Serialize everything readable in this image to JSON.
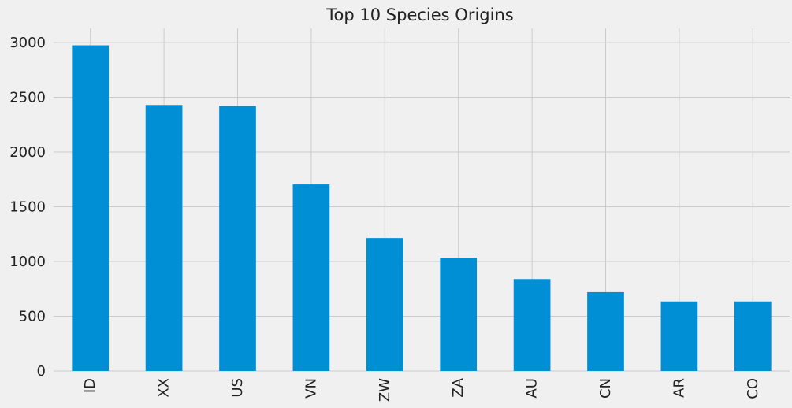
{
  "chart_data": {
    "type": "bar",
    "title": "Top 10 Species Origins",
    "xlabel": "",
    "ylabel": "",
    "categories": [
      "ID",
      "XX",
      "US",
      "VN",
      "ZW",
      "ZA",
      "AU",
      "CN",
      "AR",
      "CO"
    ],
    "values": [
      2975,
      2430,
      2420,
      1705,
      1215,
      1035,
      840,
      720,
      635,
      635
    ],
    "ylim": [
      0,
      3130
    ],
    "yticks": [
      0,
      500,
      1000,
      1500,
      2000,
      2500,
      3000
    ],
    "ytick_labels": [
      "0",
      "500",
      "1000",
      "1500",
      "2000",
      "2500",
      "3000"
    ],
    "bar_color": "#008fd5",
    "background_color": "#f0f0f0",
    "grid_color": "#cbcbcb",
    "grid": true,
    "legend": false,
    "x_tick_rotation": "vertical"
  }
}
